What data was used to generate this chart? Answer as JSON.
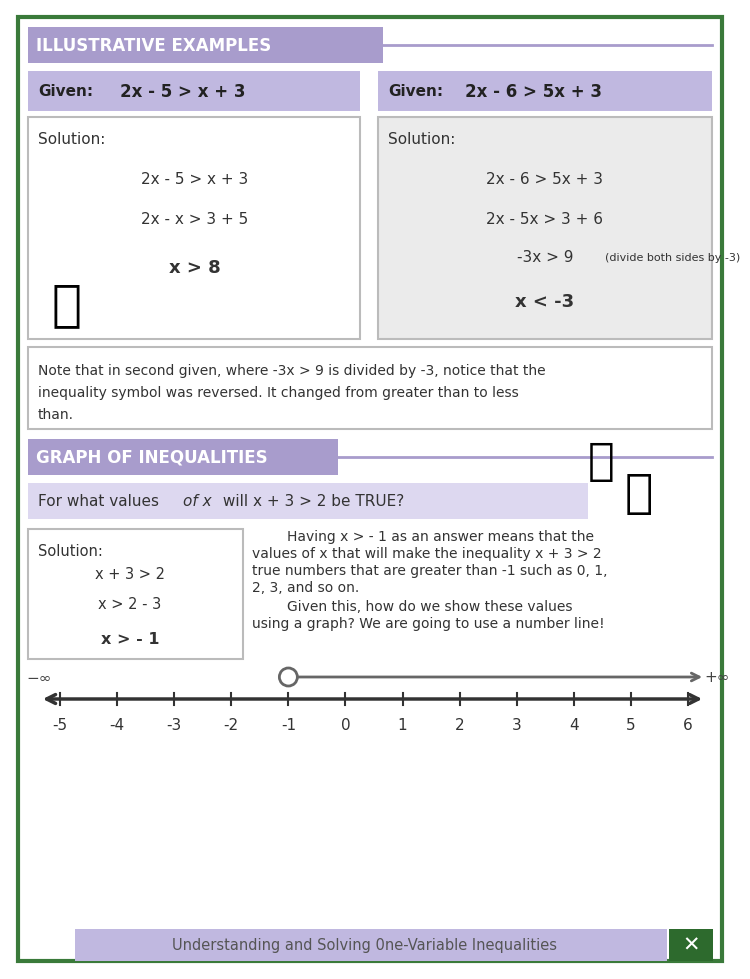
{
  "bg_color": "#ffffff",
  "border_color": "#3a7a3a",
  "purple_header_bg": "#a89ccc",
  "given_bg": "#c0b8e0",
  "solution1_bg": "#ffffff",
  "solution2_bg": "#ebebeb",
  "note_bg": "#ffffff",
  "graph_header_bg": "#a89ccc",
  "graph_question_bg": "#ddd8f0",
  "solution3_bg": "#ffffff",
  "footer_bg": "#c0b8e0",
  "footer_icon_bg": "#2d6a2d",
  "title_illustrative": "ILLUSTRATIVE EXAMPLES",
  "graph_title": "GRAPH OF INEQUALITIES",
  "graph_question_pre": "For what values ",
  "graph_question_italic": "of x",
  "graph_question_post": " will x + 3 > 2 be TRUE?",
  "footer_text": "Understanding and Solving 0ne-Variable Inequalities",
  "sol2_note": "(divide both sides by -3)",
  "number_line_labels": [
    "-5",
    "-4",
    "-3",
    "-2",
    "-1",
    "0",
    "1",
    "2",
    "3",
    "4",
    "5",
    "6"
  ]
}
